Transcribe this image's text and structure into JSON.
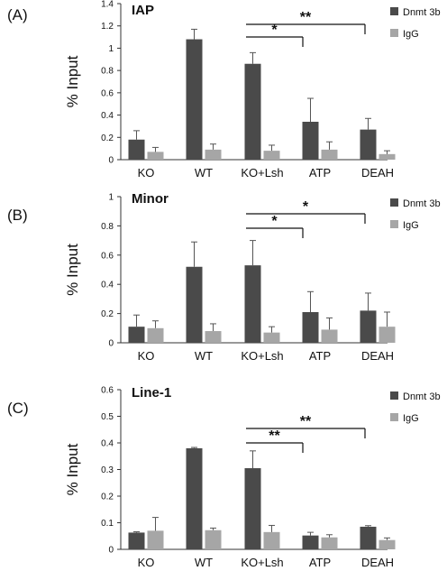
{
  "colors": {
    "dnmt": "#4a4a4a",
    "igg": "#a6a6a6",
    "axis": "#333333"
  },
  "chart_data": [
    {
      "type": "bar",
      "panel_label": "(A)",
      "title": "IAP",
      "ylabel": "% Input",
      "ylim": [
        0,
        1.4
      ],
      "yticks": [
        "0",
        "0.2",
        "0.4",
        "0.6",
        "0.8",
        "1",
        "1.2",
        "1.4"
      ],
      "categories": [
        "KO",
        "WT",
        "KO+Lsh",
        "ATP",
        "DEAH"
      ],
      "series": [
        {
          "name": "Dnmt 3b",
          "values": [
            0.18,
            1.08,
            0.86,
            0.34,
            0.27
          ],
          "errors": [
            0.08,
            0.09,
            0.1,
            0.21,
            0.1
          ]
        },
        {
          "name": "IgG",
          "values": [
            0.07,
            0.09,
            0.08,
            0.09,
            0.05
          ],
          "errors": [
            0.04,
            0.05,
            0.05,
            0.07,
            0.03
          ]
        }
      ],
      "significance": [
        {
          "from": "KO+Lsh",
          "to": "ATP",
          "label": "*"
        },
        {
          "from": "KO+Lsh",
          "to": "DEAH",
          "label": "**"
        }
      ],
      "legend_position": "top-right"
    },
    {
      "type": "bar",
      "panel_label": "(B)",
      "title": "Minor",
      "ylabel": "% Input",
      "ylim": [
        0,
        1
      ],
      "yticks": [
        "0",
        "0.2",
        "0.4",
        "0.6",
        "0.8",
        "1"
      ],
      "categories": [
        "KO",
        "WT",
        "KO+Lsh",
        "ATP",
        "DEAH"
      ],
      "series": [
        {
          "name": "Dnmt 3b",
          "values": [
            0.11,
            0.52,
            0.53,
            0.21,
            0.22
          ],
          "errors": [
            0.08,
            0.17,
            0.17,
            0.14,
            0.12
          ]
        },
        {
          "name": "IgG",
          "values": [
            0.1,
            0.08,
            0.07,
            0.09,
            0.11
          ],
          "errors": [
            0.05,
            0.05,
            0.04,
            0.08,
            0.1
          ]
        }
      ],
      "significance": [
        {
          "from": "KO+Lsh",
          "to": "ATP",
          "label": "*"
        },
        {
          "from": "KO+Lsh",
          "to": "DEAH",
          "label": "*"
        }
      ],
      "legend_position": "top-right"
    },
    {
      "type": "bar",
      "panel_label": "(C)",
      "title": "Line-1",
      "ylabel": "% Input",
      "ylim": [
        0,
        0.6
      ],
      "yticks": [
        "0",
        "0.1",
        "0.2",
        "0.3",
        "0.4",
        "0.5",
        "0.6"
      ],
      "categories": [
        "KO",
        "WT",
        "KO+Lsh",
        "ATP",
        "DEAH"
      ],
      "series": [
        {
          "name": "Dnmt 3b",
          "values": [
            0.063,
            0.38,
            0.305,
            0.052,
            0.085
          ],
          "errors": [
            0.003,
            0.003,
            0.065,
            0.012,
            0.004
          ]
        },
        {
          "name": "IgG",
          "values": [
            0.07,
            0.072,
            0.065,
            0.045,
            0.035
          ],
          "errors": [
            0.05,
            0.008,
            0.025,
            0.01,
            0.008
          ]
        }
      ],
      "significance": [
        {
          "from": "KO+Lsh",
          "to": "ATP",
          "label": "**"
        },
        {
          "from": "KO+Lsh",
          "to": "DEAH",
          "label": "**"
        }
      ],
      "legend_position": "top-right"
    }
  ]
}
